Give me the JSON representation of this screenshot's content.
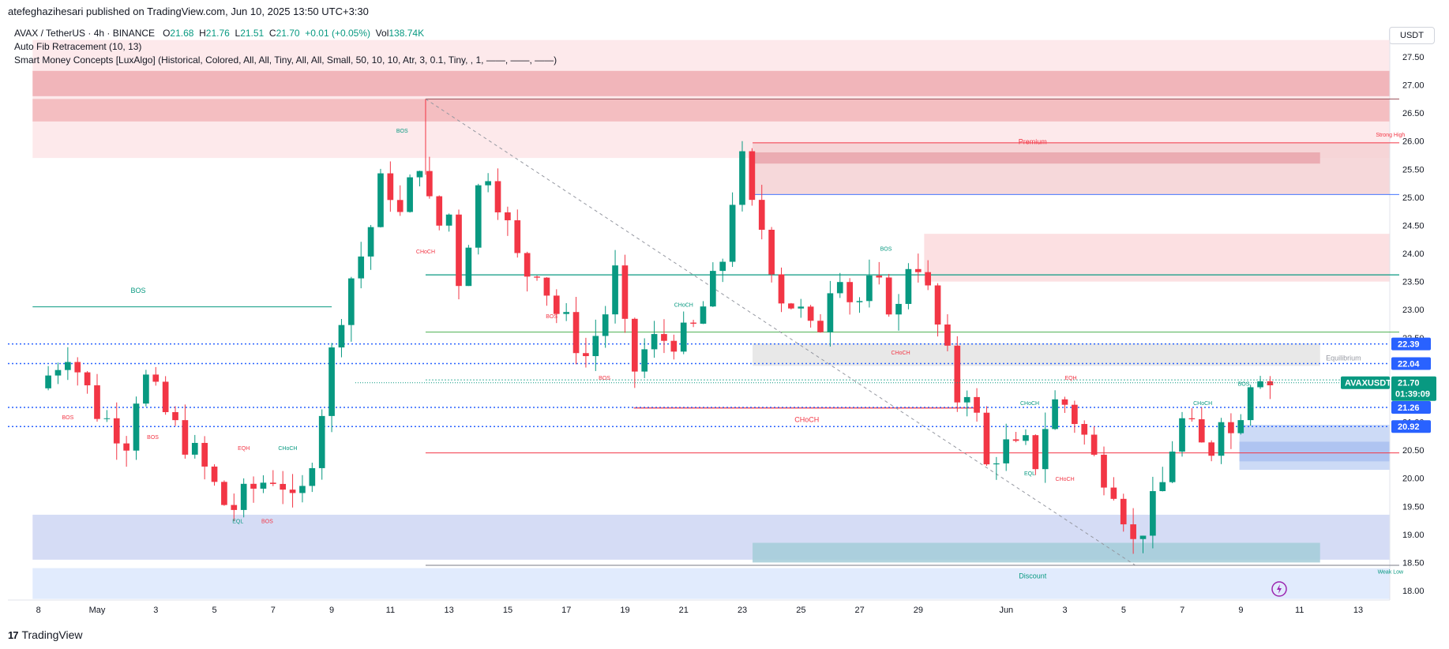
{
  "header": {
    "publisher": "atefeghazihesari published on TradingView.com, Jun 10, 2025 13:50 UTC+3:30"
  },
  "legend": {
    "symbol": "AVAX / TetherUS · 4h · BINANCE",
    "o_label": "O",
    "o_value": "21.68",
    "h_label": "H",
    "h_value": "21.76",
    "l_label": "L",
    "l_value": "21.51",
    "c_label": "C",
    "c_value": "21.70",
    "change": "+0.01 (+0.05%)",
    "vol_label": "Vol",
    "vol_value": "138.74K",
    "indicator1": "Auto Fib Retracement (10, 13)",
    "indicator2": "Smart Money Concepts [LuxAlgo] (Historical, Colored, All, All, Tiny, All, All, Small, 50, 10, 10, Atr, 3, 0.1, Tiny, , 1, ——, ——, ——)"
  },
  "currency": "USDT",
  "footer": {
    "brand": "TradingView"
  },
  "colors": {
    "up": "#089981",
    "down": "#f23645",
    "premium": "#f7b5b9",
    "discount": "#b7c8f0",
    "blue_tag": "#2962ff",
    "green_tag": "#089981"
  },
  "chart_data": {
    "type": "candlestick",
    "symbol": "AVAXUSDT",
    "interval": "4h",
    "ylim": [
      17.8,
      27.8
    ],
    "y_ticks": [
      "27.50",
      "27.00",
      "26.50",
      "26.00",
      "25.50",
      "25.00",
      "24.50",
      "24.00",
      "23.50",
      "23.00",
      "22.50",
      "22.00",
      "21.50",
      "21.00",
      "20.50",
      "20.00",
      "19.50",
      "19.00",
      "18.50",
      "18.00"
    ],
    "x_ticks": [
      {
        "label": "8",
        "day": -1
      },
      {
        "label": "May",
        "day": 1
      },
      {
        "label": "3",
        "day": 3
      },
      {
        "label": "5",
        "day": 5
      },
      {
        "label": "7",
        "day": 7
      },
      {
        "label": "9",
        "day": 9
      },
      {
        "label": "11",
        "day": 11
      },
      {
        "label": "13",
        "day": 13
      },
      {
        "label": "15",
        "day": 15
      },
      {
        "label": "17",
        "day": 17
      },
      {
        "label": "19",
        "day": 19
      },
      {
        "label": "21",
        "day": 21
      },
      {
        "label": "23",
        "day": 23
      },
      {
        "label": "25",
        "day": 25
      },
      {
        "label": "27",
        "day": 27
      },
      {
        "label": "29",
        "day": 29
      },
      {
        "label": "Jun",
        "day": 32
      },
      {
        "label": "3",
        "day": 34
      },
      {
        "label": "5",
        "day": 36
      },
      {
        "label": "7",
        "day": 38
      },
      {
        "label": "9",
        "day": 40
      },
      {
        "label": "11",
        "day": 42
      },
      {
        "label": "13",
        "day": 44
      }
    ],
    "price_path": [
      [
        -1.0,
        21.6
      ],
      [
        0.0,
        22.3
      ],
      [
        1.0,
        21.2
      ],
      [
        2.0,
        20.7
      ],
      [
        2.5,
        21.9
      ],
      [
        3.5,
        21.0
      ],
      [
        4.5,
        20.3
      ],
      [
        5.5,
        19.4
      ],
      [
        6.5,
        19.9
      ],
      [
        7.2,
        20.1
      ],
      [
        7.8,
        19.3
      ],
      [
        8.5,
        20.8
      ],
      [
        9.0,
        22.2
      ],
      [
        9.5,
        23.4
      ],
      [
        10.2,
        24.2
      ],
      [
        10.8,
        25.5
      ],
      [
        11.3,
        24.6
      ],
      [
        12.0,
        25.7
      ],
      [
        12.5,
        24.4
      ],
      [
        13.0,
        24.7
      ],
      [
        13.3,
        23.5
      ],
      [
        13.8,
        24.6
      ],
      [
        14.2,
        25.7
      ],
      [
        14.8,
        24.8
      ],
      [
        15.5,
        23.6
      ],
      [
        16.0,
        23.8
      ],
      [
        16.6,
        23.0
      ],
      [
        17.2,
        22.6
      ],
      [
        17.6,
        22.1
      ],
      [
        18.3,
        22.9
      ],
      [
        18.7,
        23.7
      ],
      [
        19.2,
        21.8
      ],
      [
        19.8,
        22.4
      ],
      [
        20.5,
        22.5
      ],
      [
        21.2,
        22.5
      ],
      [
        21.8,
        23.2
      ],
      [
        22.3,
        23.8
      ],
      [
        22.6,
        24.9
      ],
      [
        23.0,
        25.6
      ],
      [
        23.4,
        24.6
      ],
      [
        23.8,
        24.4
      ],
      [
        24.2,
        23.3
      ],
      [
        24.7,
        23.1
      ],
      [
        25.2,
        22.8
      ],
      [
        25.5,
        22.3
      ],
      [
        25.9,
        23.4
      ],
      [
        26.3,
        23.8
      ],
      [
        26.8,
        23.0
      ],
      [
        27.3,
        23.4
      ],
      [
        27.8,
        23.3
      ],
      [
        28.3,
        22.9
      ],
      [
        28.8,
        24.2
      ],
      [
        29.2,
        23.5
      ],
      [
        29.6,
        22.8
      ],
      [
        30.0,
        22.1
      ],
      [
        30.4,
        21.3
      ],
      [
        30.7,
        21.7
      ],
      [
        31.1,
        20.8
      ],
      [
        31.4,
        20.0
      ],
      [
        31.8,
        20.7
      ],
      [
        32.2,
        20.4
      ],
      [
        32.6,
        20.6
      ],
      [
        33.0,
        20.3
      ],
      [
        33.5,
        21.3
      ],
      [
        33.9,
        21.4
      ],
      [
        34.3,
        21.1
      ],
      [
        34.7,
        20.7
      ],
      [
        35.1,
        20.2
      ],
      [
        35.6,
        20.0
      ],
      [
        36.0,
        19.4
      ],
      [
        36.4,
        18.7
      ],
      [
        36.8,
        19.4
      ],
      [
        37.2,
        19.6
      ],
      [
        37.6,
        20.5
      ],
      [
        38.0,
        21.0
      ],
      [
        38.5,
        20.7
      ],
      [
        38.9,
        20.3
      ],
      [
        39.3,
        21.3
      ],
      [
        39.6,
        20.7
      ],
      [
        39.9,
        21.1
      ],
      [
        40.2,
        21.6
      ],
      [
        40.5,
        22.1
      ],
      [
        40.8,
        21.8
      ],
      [
        41.0,
        21.7
      ]
    ],
    "zones": [
      {
        "role": "premium-band",
        "y1": 27.8,
        "y2": 25.7,
        "x1": -1.2,
        "x2": 45.4,
        "color": "#fde5e7"
      },
      {
        "role": "premium-band",
        "y1": 26.75,
        "y2": 26.35,
        "x1": -1.2,
        "x2": 45.4,
        "color": "#f2b6ba"
      },
      {
        "role": "premium-band",
        "y1": 27.25,
        "y2": 26.8,
        "x1": -1.2,
        "x2": 45.4,
        "color": "#efacb1"
      },
      {
        "role": "supply",
        "y1": 25.97,
        "y2": 25.05,
        "x1": 23.35,
        "x2": 45.4,
        "color": "#f5d1d4"
      },
      {
        "role": "supply",
        "y1": 25.8,
        "y2": 25.6,
        "x1": 23.35,
        "x2": 42.7,
        "color": "#e9a5ab"
      },
      {
        "role": "supply",
        "y1": 24.35,
        "y2": 23.5,
        "x1": 29.2,
        "x2": 45.4,
        "color": "#fbdadd"
      },
      {
        "role": "equilibrium",
        "y1": 22.4,
        "y2": 22.0,
        "x1": 23.35,
        "x2": 42.7,
        "color": "#e4e4e4"
      },
      {
        "role": "demand",
        "y1": 20.95,
        "y2": 20.15,
        "x1": 39.95,
        "x2": 45.4,
        "color": "#c3d3f5"
      },
      {
        "role": "demand",
        "y1": 20.65,
        "y2": 20.3,
        "x1": 39.95,
        "x2": 45.4,
        "color": "#a9bff0"
      },
      {
        "role": "discount-band",
        "y1": 19.35,
        "y2": 18.55,
        "x1": -1.2,
        "x2": 45.4,
        "color": "#ced6f3"
      },
      {
        "role": "discount-band",
        "y1": 18.4,
        "y2": 17.85,
        "x1": -1.2,
        "x2": 45.4,
        "color": "#dce7fd"
      },
      {
        "role": "discount-band",
        "y1": 18.85,
        "y2": 18.5,
        "x1": 23.35,
        "x2": 42.7,
        "color": "#a3cdd8"
      }
    ],
    "levels": [
      {
        "y": 22.39,
        "label": "22.39",
        "style": "dotted",
        "color": "#2962ff"
      },
      {
        "y": 22.04,
        "label": "22.04",
        "style": "dotted",
        "color": "#2962ff"
      },
      {
        "y": 21.26,
        "label": "21.26",
        "style": "dotted",
        "color": "#2962ff"
      },
      {
        "y": 20.92,
        "label": "20.92",
        "style": "dotted",
        "color": "#2962ff"
      }
    ],
    "last_price": {
      "label": "AVAXUSDT",
      "price": "21.70",
      "countdown": "01:39:09",
      "y": 21.7
    },
    "smc_labels": [
      {
        "text": "BOS",
        "x": 2.4,
        "y": 23.3,
        "color": "#089981",
        "size": "smc"
      },
      {
        "text": "BOS",
        "x": 0.0,
        "y": 21.05,
        "color": "#f23645"
      },
      {
        "text": "BOS",
        "x": 2.9,
        "y": 20.7,
        "color": "#f23645"
      },
      {
        "text": "EQH",
        "x": 6.0,
        "y": 20.5,
        "color": "#f23645"
      },
      {
        "text": "CHoCH",
        "x": 7.5,
        "y": 20.5,
        "color": "#089981"
      },
      {
        "text": "EQL",
        "x": 5.8,
        "y": 19.2,
        "color": "#089981"
      },
      {
        "text": "BOS",
        "x": 6.8,
        "y": 19.2,
        "color": "#f23645"
      },
      {
        "text": "BOS",
        "x": 11.4,
        "y": 26.15,
        "color": "#089981"
      },
      {
        "text": "CHoCH",
        "x": 12.2,
        "y": 24.0,
        "color": "#f23645"
      },
      {
        "text": "BOS",
        "x": 16.5,
        "y": 22.85,
        "color": "#f23645"
      },
      {
        "text": "CHoCH",
        "x": 21.0,
        "y": 23.05,
        "color": "#089981"
      },
      {
        "text": "BOS",
        "x": 18.3,
        "y": 21.75,
        "color": "#f23645"
      },
      {
        "text": "CHoCH",
        "x": 25.2,
        "y": 21.0,
        "color": "#f23645",
        "size": "smc"
      },
      {
        "text": "BOS",
        "x": 27.9,
        "y": 24.05,
        "color": "#089981"
      },
      {
        "text": "CHoCH",
        "x": 28.4,
        "y": 22.2,
        "color": "#f23645"
      },
      {
        "text": "EQH",
        "x": 34.2,
        "y": 21.75,
        "color": "#f23645"
      },
      {
        "text": "CHoCH",
        "x": 32.8,
        "y": 21.3,
        "color": "#089981"
      },
      {
        "text": "EQL",
        "x": 32.8,
        "y": 20.05,
        "color": "#089981"
      },
      {
        "text": "CHoCH",
        "x": 34.0,
        "y": 19.95,
        "color": "#f23645"
      },
      {
        "text": "CHoCH",
        "x": 38.7,
        "y": 21.3,
        "color": "#089981"
      },
      {
        "text": "BOS",
        "x": 40.1,
        "y": 21.65,
        "color": "#089981"
      },
      {
        "text": "Premium",
        "x": 32.9,
        "y": 25.95,
        "color": "#f23645",
        "size": "smc"
      },
      {
        "text": "Strong High",
        "x": 45.1,
        "y": 26.08,
        "color": "#f23645"
      },
      {
        "text": "Equilibrium",
        "x": 43.5,
        "y": 22.1,
        "color": "#9598a1",
        "size": "smc"
      },
      {
        "text": "Discount",
        "x": 32.9,
        "y": 18.22,
        "color": "#089981",
        "size": "smc"
      },
      {
        "text": "Weak Low",
        "x": 45.1,
        "y": 18.3,
        "color": "#089981"
      }
    ]
  }
}
